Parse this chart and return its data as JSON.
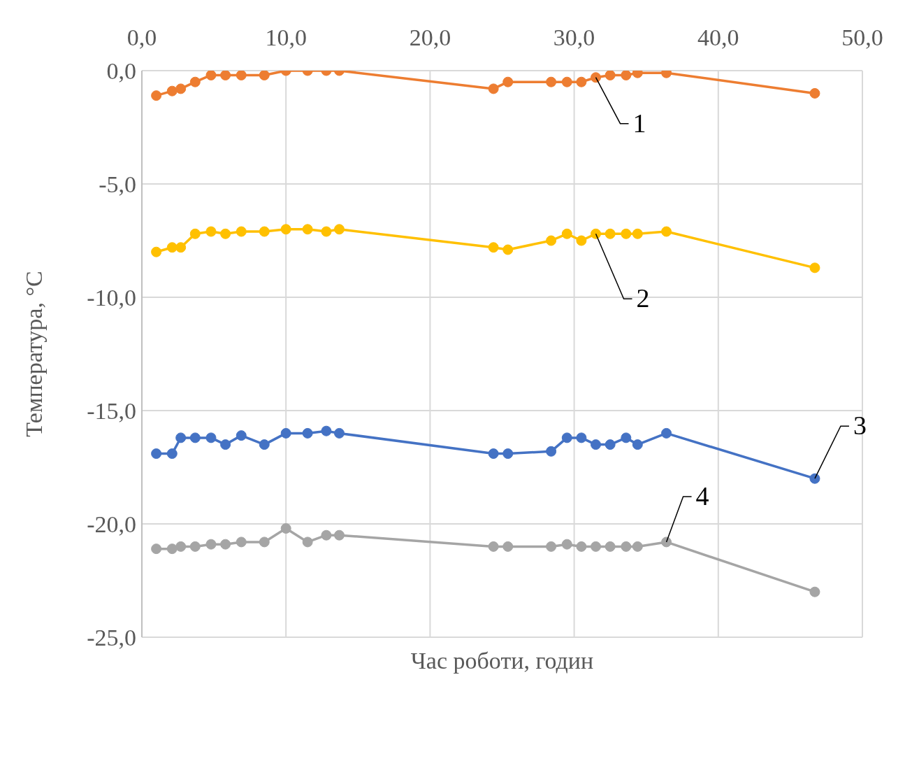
{
  "chart_data": {
    "type": "line",
    "xlabel": "Час роботи, годин",
    "ylabel": "Температура, °C",
    "x": [
      1.0,
      2.1,
      2.7,
      3.7,
      4.8,
      5.8,
      6.9,
      8.5,
      10.0,
      11.5,
      12.8,
      13.7,
      24.4,
      25.4,
      28.4,
      29.5,
      30.5,
      31.5,
      32.5,
      33.6,
      34.4,
      36.4,
      46.7
    ],
    "series": [
      {
        "color": "#ed7d31",
        "values": [
          -1.1,
          -0.9,
          -0.8,
          -0.5,
          -0.2,
          -0.2,
          -0.2,
          -0.2,
          0.0,
          0.0,
          0.0,
          0.0,
          -0.8,
          -0.5,
          -0.5,
          -0.5,
          -0.5,
          -0.3,
          -0.2,
          -0.2,
          -0.1,
          -0.1,
          -1.0
        ]
      },
      {
        "color": "#ffc000",
        "values": [
          -8.0,
          -7.8,
          -7.8,
          -7.2,
          -7.1,
          -7.2,
          -7.1,
          -7.1,
          -7.0,
          -7.0,
          -7.1,
          -7.0,
          -7.8,
          -7.9,
          -7.5,
          -7.2,
          -7.5,
          -7.2,
          -7.2,
          -7.2,
          -7.2,
          -7.1,
          -8.7
        ]
      },
      {
        "color": "#4472c4",
        "values": [
          -16.9,
          -16.9,
          -16.2,
          -16.2,
          -16.2,
          -16.5,
          -16.1,
          -16.5,
          -16.0,
          -16.0,
          -15.9,
          -16.0,
          -16.9,
          -16.9,
          -16.8,
          -16.2,
          -16.2,
          -16.5,
          -16.5,
          -16.2,
          -16.5,
          -16.0,
          -18.0
        ]
      },
      {
        "color": "#a5a5a5",
        "values": [
          -21.1,
          -21.1,
          -21.0,
          -21.0,
          -20.9,
          -20.9,
          -20.8,
          -20.8,
          -20.2,
          -20.8,
          -20.5,
          -20.5,
          -21.0,
          -21.0,
          -21.0,
          -20.9,
          -21.0,
          -21.0,
          -21.0,
          -21.0,
          -21.0,
          -20.8,
          -23.0
        ]
      }
    ],
    "xlim": [
      0,
      50
    ],
    "xticks": [
      {
        "value": 0,
        "label": "0,0"
      },
      {
        "value": 10,
        "label": "10,0"
      },
      {
        "value": 20,
        "label": "20,0"
      },
      {
        "value": 30,
        "label": "30,0"
      },
      {
        "value": 40,
        "label": "40,0"
      },
      {
        "value": 50,
        "label": "50,0"
      }
    ],
    "ylim": [
      -25,
      0
    ],
    "yticks": [
      {
        "value": 0,
        "label": "0,0"
      },
      {
        "value": -5,
        "label": "-5,0"
      },
      {
        "value": -10,
        "label": "-10,0"
      },
      {
        "value": -15,
        "label": "-15,0"
      },
      {
        "value": -20,
        "label": "-20,0"
      },
      {
        "value": -25,
        "label": "-25,0"
      }
    ],
    "annotations": [
      {
        "text": "1",
        "x": 31.5,
        "y": -0.3
      },
      {
        "text": "2",
        "x": 31.5,
        "y": -7.2
      },
      {
        "text": "3",
        "x": 46.7,
        "y": -18.0
      },
      {
        "text": "4",
        "x": 36.4,
        "y": -20.8
      }
    ],
    "grid": true,
    "marker": "circle",
    "line_style": "solid"
  }
}
